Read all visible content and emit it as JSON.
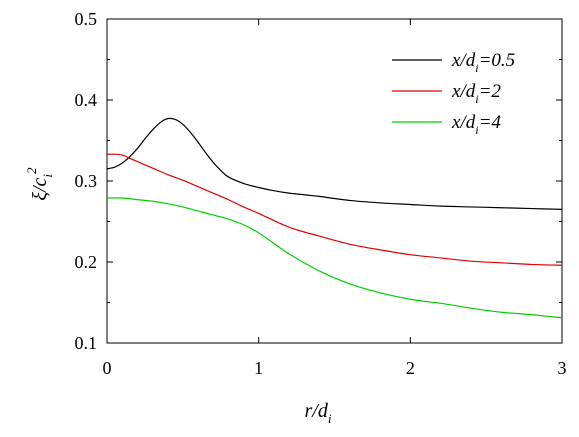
{
  "chart_data": {
    "type": "line",
    "xlabel": {
      "base": "r/d",
      "sub": "i"
    },
    "ylabel": {
      "base": "ξ/c",
      "sub": "i",
      "sup": "2"
    },
    "xlim": [
      0,
      3
    ],
    "ylim": [
      0.1,
      0.5
    ],
    "xticks": [
      "0",
      "1",
      "2",
      "3"
    ],
    "yticks": [
      "0.1",
      "0.2",
      "0.3",
      "0.4",
      "0.5"
    ],
    "grid": false,
    "legend_position": "top-right",
    "series": [
      {
        "name": {
          "pre": "x/d",
          "sub": "i",
          "post": "=0.5"
        },
        "color": "#000000",
        "x": [
          0,
          0.05,
          0.1,
          0.15,
          0.2,
          0.25,
          0.3,
          0.35,
          0.4,
          0.45,
          0.5,
          0.55,
          0.6,
          0.65,
          0.7,
          0.75,
          0.8,
          0.9,
          1.0,
          1.1,
          1.2,
          1.3,
          1.4,
          1.6,
          1.8,
          2.0,
          2.2,
          2.4,
          2.6,
          2.8,
          3.0
        ],
        "y": [
          0.315,
          0.317,
          0.322,
          0.33,
          0.34,
          0.352,
          0.363,
          0.372,
          0.377,
          0.376,
          0.37,
          0.36,
          0.348,
          0.335,
          0.323,
          0.313,
          0.305,
          0.297,
          0.292,
          0.288,
          0.285,
          0.283,
          0.281,
          0.276,
          0.273,
          0.271,
          0.269,
          0.268,
          0.267,
          0.266,
          0.265
        ]
      },
      {
        "name": {
          "pre": "x/d",
          "sub": "i",
          "post": "=2"
        },
        "color": "#e00000",
        "x": [
          0,
          0.05,
          0.1,
          0.15,
          0.2,
          0.3,
          0.4,
          0.5,
          0.6,
          0.7,
          0.8,
          0.9,
          1.0,
          1.2,
          1.4,
          1.6,
          1.8,
          2.0,
          2.2,
          2.4,
          2.6,
          2.8,
          3.0
        ],
        "y": [
          0.333,
          0.333,
          0.332,
          0.328,
          0.324,
          0.316,
          0.308,
          0.301,
          0.293,
          0.285,
          0.277,
          0.268,
          0.26,
          0.243,
          0.232,
          0.222,
          0.215,
          0.209,
          0.205,
          0.201,
          0.199,
          0.197,
          0.196
        ]
      },
      {
        "name": {
          "pre": "x/d",
          "sub": "i",
          "post": "=4"
        },
        "color": "#00d000",
        "x": [
          0,
          0.1,
          0.2,
          0.3,
          0.4,
          0.5,
          0.6,
          0.7,
          0.8,
          0.9,
          1.0,
          1.1,
          1.2,
          1.4,
          1.6,
          1.8,
          2.0,
          2.2,
          2.4,
          2.6,
          2.8,
          3.0
        ],
        "y": [
          0.279,
          0.279,
          0.277,
          0.275,
          0.272,
          0.268,
          0.263,
          0.258,
          0.253,
          0.246,
          0.236,
          0.223,
          0.21,
          0.189,
          0.173,
          0.162,
          0.154,
          0.149,
          0.143,
          0.138,
          0.135,
          0.131
        ]
      }
    ]
  }
}
